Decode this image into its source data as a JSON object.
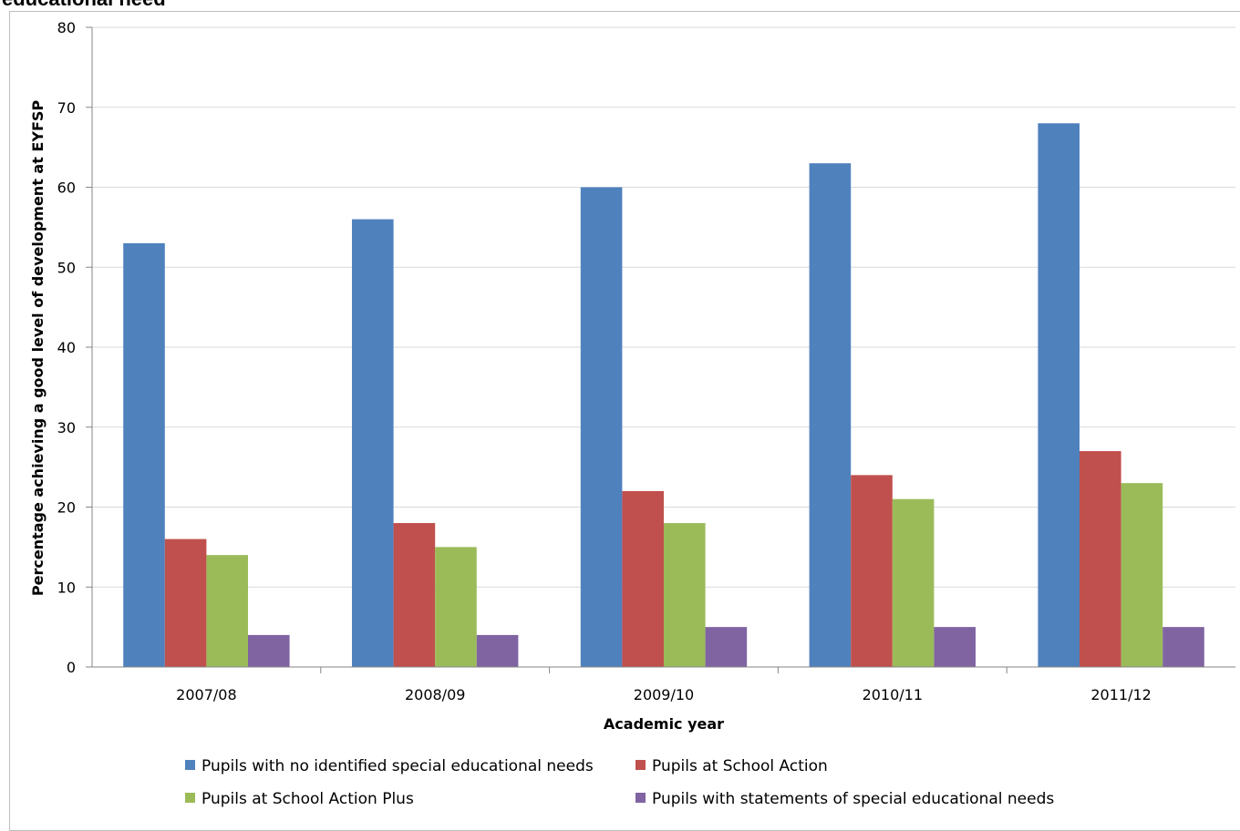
{
  "chart_data": {
    "type": "bar",
    "title": "educational need",
    "xlabel": "Academic year",
    "ylabel": "Percentage achieving a good level of development at EYFSP",
    "ylim": [
      0,
      80
    ],
    "yticks": [
      0,
      10,
      20,
      30,
      40,
      50,
      60,
      70,
      80
    ],
    "grid": true,
    "legend_position": "bottom",
    "categories": [
      "2007/08",
      "2008/09",
      "2009/10",
      "2010/11",
      "2011/12"
    ],
    "series": [
      {
        "name": "Pupils with no identified special educational needs",
        "color": "#4F81BD",
        "values": [
          53,
          56,
          60,
          63,
          68
        ]
      },
      {
        "name": "Pupils at School Action",
        "color": "#C0504D",
        "values": [
          16,
          18,
          22,
          24,
          27
        ]
      },
      {
        "name": "Pupils at School Action Plus",
        "color": "#9BBB59",
        "values": [
          14,
          15,
          18,
          21,
          23
        ]
      },
      {
        "name": "Pupils with statements of special educational needs",
        "color": "#8064A2",
        "values": [
          4,
          4,
          5,
          5,
          5
        ]
      }
    ]
  }
}
